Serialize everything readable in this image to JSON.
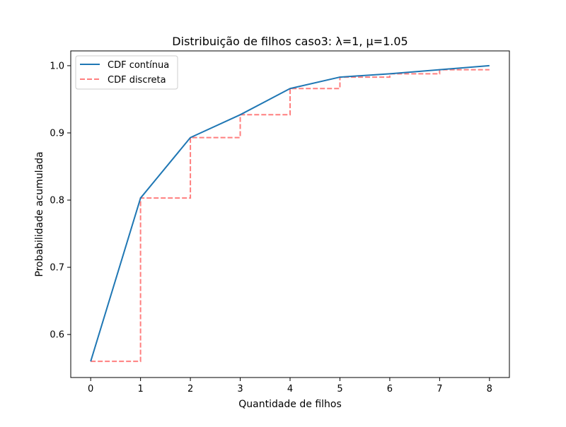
{
  "chart_data": {
    "type": "line",
    "title": "Distribuição de filhos caso3: λ=1, μ=1.05",
    "xlabel": "Quantidade de filhos",
    "ylabel": "Probabilidade acumulada",
    "xlim": [
      -0.4,
      8.4
    ],
    "ylim": [
      0.536,
      1.022
    ],
    "x_ticks": [
      0,
      1,
      2,
      3,
      4,
      5,
      6,
      7,
      8
    ],
    "y_ticks": [
      0.6,
      0.7,
      0.8,
      0.9,
      1.0
    ],
    "x_tick_labels": [
      "0",
      "1",
      "2",
      "3",
      "4",
      "5",
      "6",
      "7",
      "8"
    ],
    "y_tick_labels": [
      "0.6",
      "0.7",
      "0.8",
      "0.9",
      "1.0"
    ],
    "grid": false,
    "legend_position": "top-left",
    "series": [
      {
        "name": "CDF contínua",
        "style": "solid",
        "color": "#1f77b4",
        "x": [
          0,
          1,
          2,
          3,
          4,
          5,
          6,
          7,
          8
        ],
        "y": [
          0.56,
          0.803,
          0.893,
          0.927,
          0.966,
          0.983,
          0.988,
          0.994,
          1.0
        ]
      },
      {
        "name": "CDF discreta",
        "style": "dashed-step",
        "color": "#ff7f7f",
        "x": [
          0,
          1,
          2,
          3,
          4,
          5,
          6,
          7,
          8
        ],
        "y": [
          0.56,
          0.803,
          0.893,
          0.927,
          0.966,
          0.983,
          0.988,
          0.994,
          0.994
        ]
      }
    ]
  }
}
